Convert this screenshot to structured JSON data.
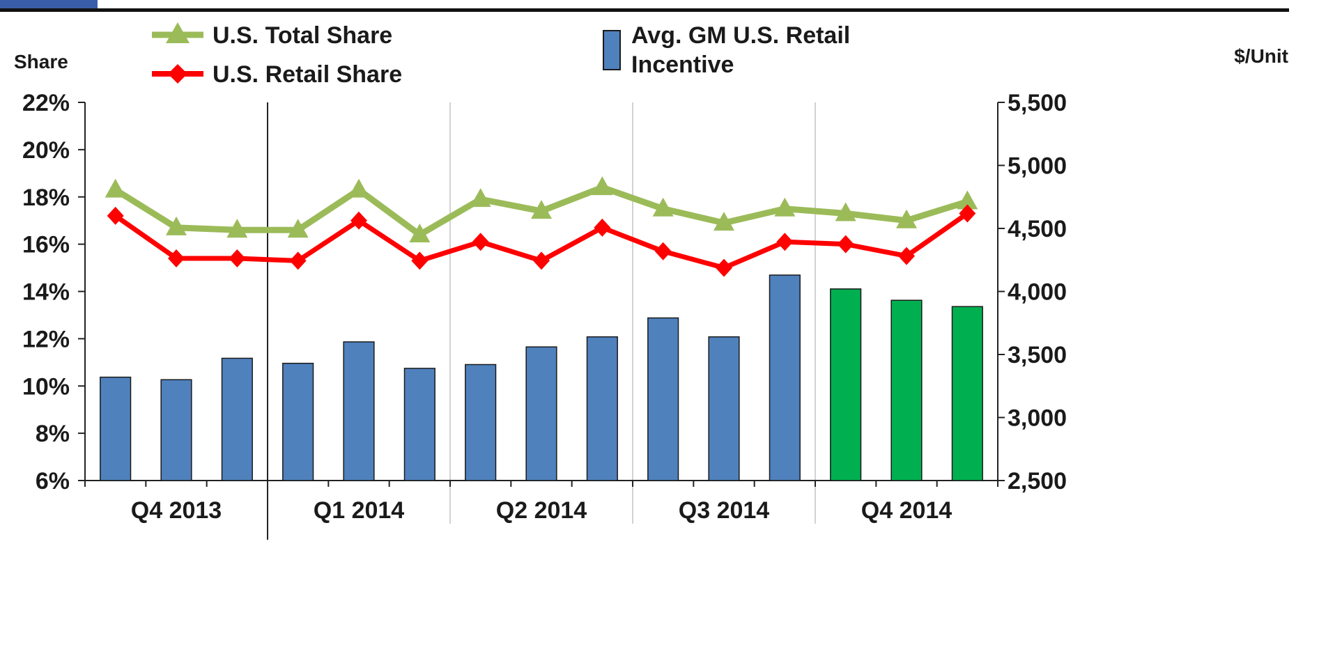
{
  "chart_data": {
    "type": "bar+line",
    "left_axis": {
      "label": "Share",
      "ticks": [
        "22%",
        "20%",
        "18%",
        "16%",
        "14%",
        "12%",
        "10%",
        "8%",
        "6%"
      ],
      "range": [
        6,
        22
      ],
      "unit": "%"
    },
    "right_axis": {
      "label": "$/Unit",
      "ticks": [
        "5,500",
        "5,000",
        "4,500",
        "4,000",
        "3,500",
        "3,000",
        "2,500"
      ],
      "range": [
        2500,
        5500
      ]
    },
    "quarters": [
      "Q4 2013",
      "Q1 2014",
      "Q2 2014",
      "Q3 2014",
      "Q4 2014"
    ],
    "months_per_quarter": 3,
    "legend": {
      "total_share": "U.S. Total Share",
      "retail_share": "U.S. Retail Share",
      "incentive_line1": "Avg. GM U.S. Retail",
      "incentive_line2": "Incentive"
    },
    "series": [
      {
        "name": "U.S. Total Share",
        "axis": "left",
        "kind": "line",
        "color": "#9bbb59",
        "values": [
          18.3,
          16.7,
          16.6,
          16.6,
          18.3,
          16.4,
          17.9,
          17.4,
          18.4,
          17.5,
          16.9,
          17.5,
          17.3,
          17.0,
          17.8
        ]
      },
      {
        "name": "U.S. Retail Share",
        "axis": "left",
        "kind": "line",
        "color": "#ff0000",
        "values": [
          17.2,
          15.4,
          15.4,
          15.3,
          17.0,
          15.3,
          16.1,
          15.3,
          16.7,
          15.7,
          15.0,
          16.1,
          16.0,
          15.5,
          17.3
        ]
      },
      {
        "name": "Avg. GM U.S. Retail Incentive",
        "axis": "right",
        "kind": "bar",
        "color": "#4f81bd",
        "highlight_color": "#00b050",
        "highlight_from_index": 12,
        "values": [
          3320,
          3300,
          3470,
          3430,
          3600,
          3390,
          3420,
          3560,
          3640,
          3790,
          3640,
          4130,
          4020,
          3930,
          3880
        ]
      }
    ],
    "grid": "vertical quarter separators",
    "legend_position": "top"
  }
}
